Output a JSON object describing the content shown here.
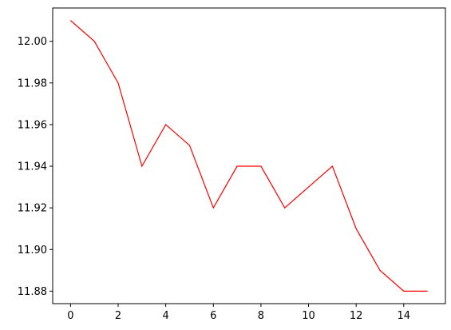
{
  "chart_data": {
    "type": "line",
    "title": "",
    "xlabel": "",
    "ylabel": "",
    "x": [
      0,
      1,
      2,
      3,
      4,
      5,
      6,
      7,
      8,
      9,
      10,
      11,
      12,
      13,
      14,
      15
    ],
    "series": [
      {
        "values": [
          12.01,
          12.0,
          11.98,
          11.94,
          11.96,
          11.95,
          11.92,
          11.94,
          11.94,
          11.92,
          11.93,
          11.94,
          11.91,
          11.89,
          11.88,
          11.88
        ],
        "color": "#ff0000"
      }
    ],
    "xlim": [
      -0.75,
      15.75
    ],
    "ylim": [
      11.874,
      12.016
    ],
    "xticks": [
      0,
      2,
      4,
      6,
      8,
      10,
      12,
      14
    ],
    "xtick_labels": [
      "0",
      "2",
      "4",
      "6",
      "8",
      "10",
      "12",
      "14"
    ],
    "yticks": [
      11.88,
      11.9,
      11.92,
      11.94,
      11.96,
      11.98,
      12.0
    ],
    "ytick_labels": [
      "11.88",
      "11.90",
      "11.92",
      "11.94",
      "11.96",
      "11.98",
      "12.00"
    ],
    "grid": false,
    "legend": "none"
  }
}
